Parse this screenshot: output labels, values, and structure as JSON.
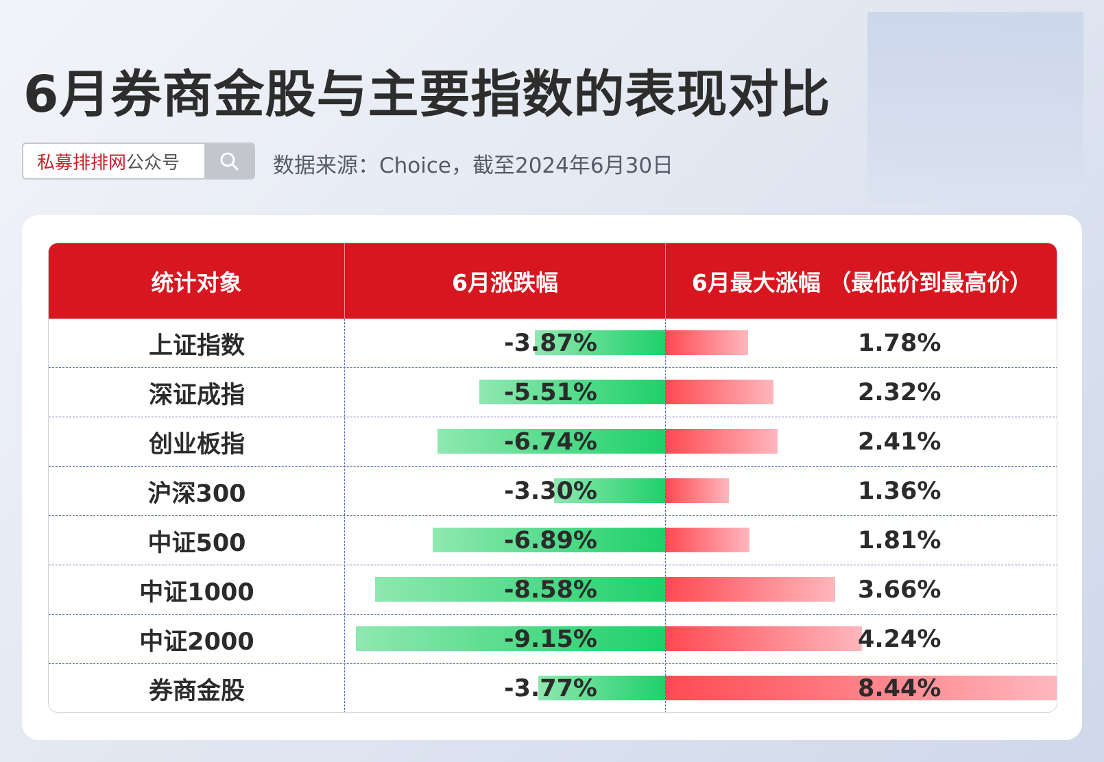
{
  "header": {
    "title": "6月券商金股与主要指数的表现对比",
    "search_brand": "私募排排网",
    "search_suffix": "公众号",
    "source": "数据来源：Choice，截至2024年6月30日"
  },
  "chart_data": {
    "type": "table",
    "columns": [
      "统计对象",
      "6月涨跌幅",
      "6月最大涨幅 （最低价到最高价）"
    ],
    "rows": [
      {
        "name": "上证指数",
        "change": -3.87,
        "change_label": "-3.87%",
        "max_rise": 1.78,
        "max_rise_label": "1.78%"
      },
      {
        "name": "深证成指",
        "change": -5.51,
        "change_label": "-5.51%",
        "max_rise": 2.32,
        "max_rise_label": "2.32%"
      },
      {
        "name": "创业板指",
        "change": -6.74,
        "change_label": "-6.74%",
        "max_rise": 2.41,
        "max_rise_label": "2.41%"
      },
      {
        "name": "沪深300",
        "change": -3.3,
        "change_label": "-3.30%",
        "max_rise": 1.36,
        "max_rise_label": "1.36%"
      },
      {
        "name": "中证500",
        "change": -6.89,
        "change_label": "-6.89%",
        "max_rise": 1.81,
        "max_rise_label": "1.81%"
      },
      {
        "name": "中证1000",
        "change": -8.58,
        "change_label": "-8.58%",
        "max_rise": 3.66,
        "max_rise_label": "3.66%"
      },
      {
        "name": "中证2000",
        "change": -9.15,
        "change_label": "-9.15%",
        "max_rise": 4.24,
        "max_rise_label": "4.24%"
      },
      {
        "name": "券商金股",
        "change": -3.77,
        "change_label": "-3.77%",
        "max_rise": 8.44,
        "max_rise_label": "8.44%"
      }
    ],
    "bar_colors": {
      "negative": "#1ed06a",
      "positive": "#ff4a52"
    },
    "header_color": "#d7161f"
  }
}
